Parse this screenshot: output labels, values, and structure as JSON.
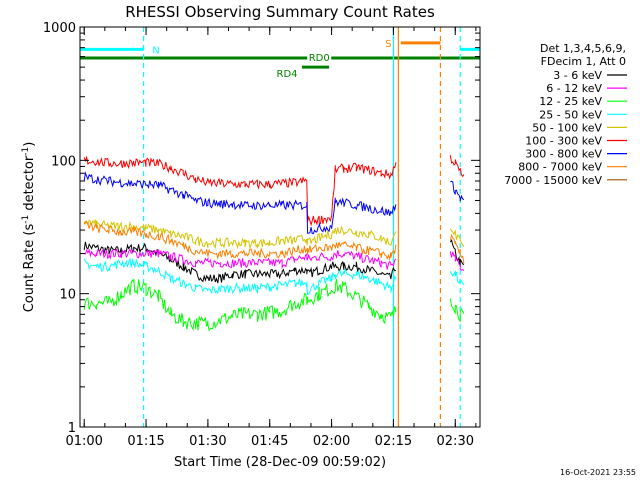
{
  "chart_data": {
    "type": "line",
    "title": "RHESSI Observing Summary Count Rates",
    "xlabel": "Start Time (28-Dec-09 00:59:02)",
    "ylabel_main": "Count Rate (s",
    "ylabel_sup1": "-1",
    "ylabel_mid": " detector",
    "ylabel_sup2": "-1",
    "ylabel_end": ")",
    "yscale": "log",
    "ylim": [
      1,
      1000
    ],
    "xlim": [
      0.983,
      2.6
    ],
    "x_ticks": [
      {
        "v": 1.0,
        "label": "01:00"
      },
      {
        "v": 1.25,
        "label": "01:15"
      },
      {
        "v": 1.5,
        "label": "01:30"
      },
      {
        "v": 1.75,
        "label": "01:45"
      },
      {
        "v": 2.0,
        "label": "02:00"
      },
      {
        "v": 2.25,
        "label": "02:15"
      },
      {
        "v": 2.5,
        "label": "02:30"
      }
    ],
    "y_ticks": [
      {
        "v": 1,
        "label": "1"
      },
      {
        "v": 10,
        "label": "10"
      },
      {
        "v": 100,
        "label": "100"
      },
      {
        "v": 1000,
        "label": "1000"
      }
    ],
    "legend": {
      "header1": "Det 1,3,4,5,6,9,",
      "header2": "FDecim 1, Att 0",
      "entries": [
        {
          "label": "3 - 6 keV",
          "color": "#000000"
        },
        {
          "label": "6 - 12 keV",
          "color": "#ff00ff"
        },
        {
          "label": "12 - 25 keV",
          "color": "#00ff00"
        },
        {
          "label": "25 - 50 keV",
          "color": "#00ffff"
        },
        {
          "label": "50 - 100 keV",
          "color": "#d4c400"
        },
        {
          "label": "100 - 300 keV",
          "color": "#ff0000"
        },
        {
          "label": "300 - 800 keV",
          "color": "#0000ff"
        },
        {
          "label": "800 - 7000 keV",
          "color": "#ff8000"
        },
        {
          "label": "7000 - 15000 keV",
          "color": "#a05000"
        }
      ]
    },
    "flag_bars": [
      {
        "label": "N",
        "color": "#00ffff",
        "x0": 0.983,
        "x1": 1.24,
        "level": 680,
        "label_x": 1.29
      },
      {
        "label": "N",
        "color": "#00ffff",
        "x0": 2.52,
        "x1": 2.6,
        "level": 680,
        "label_x": null
      },
      {
        "label": "S",
        "color": "#ff8000",
        "x0": 2.28,
        "x1": 2.44,
        "level": 760,
        "label_x": 2.23
      },
      {
        "label": "RD0",
        "color": "#008000",
        "x0": 0.983,
        "x1": 2.6,
        "level": 585,
        "label_x": 1.95
      },
      {
        "label": "RD4",
        "color": "#008000",
        "x0": 1.88,
        "x1": 1.99,
        "level": 500,
        "label_x": 1.82
      }
    ],
    "vertical_lines": [
      {
        "x": 1.24,
        "color": "#00ffff",
        "dashed": true
      },
      {
        "x": 2.25,
        "color": "#00ffff",
        "dashed": false
      },
      {
        "x": 2.27,
        "color": "#ff8000",
        "dashed": false
      },
      {
        "x": 2.44,
        "color": "#ff8000",
        "dashed": true
      },
      {
        "x": 2.52,
        "color": "#00ffff",
        "dashed": true
      }
    ],
    "x": [
      1.0,
      1.05,
      1.1,
      1.15,
      1.2,
      1.25,
      1.3,
      1.35,
      1.4,
      1.45,
      1.5,
      1.55,
      1.6,
      1.65,
      1.7,
      1.75,
      1.8,
      1.85,
      1.9,
      1.903,
      1.95,
      2.0,
      2.015,
      2.05,
      2.1,
      2.15,
      2.2,
      2.24,
      2.26,
      2.465,
      2.48,
      2.5,
      2.52,
      2.535
    ],
    "series": [
      {
        "color": "#000000",
        "values": [
          23,
          22,
          21,
          21,
          22,
          22,
          20,
          18,
          16,
          14,
          13,
          13,
          14,
          14,
          14,
          14,
          14,
          15,
          15,
          14,
          15,
          16,
          16,
          16,
          16,
          15,
          14,
          13,
          16,
          null,
          25,
          20,
          17,
          16
        ]
      },
      {
        "color": "#ff00ff",
        "values": [
          20,
          20,
          20,
          20,
          20,
          20,
          20,
          19,
          18,
          17,
          17,
          17,
          17,
          17,
          17,
          17,
          17,
          18,
          19,
          18,
          19,
          19,
          20,
          20,
          19,
          18,
          17,
          16,
          18,
          null,
          21,
          18,
          16,
          15
        ]
      },
      {
        "color": "#00ff00",
        "values": [
          8.5,
          8.5,
          8.5,
          10,
          11.5,
          11,
          9.5,
          7,
          6.2,
          6,
          6,
          6.3,
          6.8,
          7,
          7,
          7.2,
          7.5,
          8.5,
          9,
          9,
          10,
          11,
          11.5,
          11,
          9.5,
          8,
          7,
          6.5,
          7.5,
          null,
          9.5,
          8,
          7,
          6.5
        ]
      },
      {
        "color": "#00ffff",
        "values": [
          17,
          16,
          16,
          17,
          17,
          16,
          15,
          13,
          12,
          11,
          10.5,
          10.8,
          11,
          11,
          11,
          11.3,
          11.5,
          12,
          12,
          10.5,
          12,
          13,
          14,
          14,
          14,
          13,
          12,
          11,
          13,
          null,
          15,
          14,
          12,
          11
        ]
      },
      {
        "color": "#d4c400",
        "values": [
          35,
          33,
          32,
          32,
          32,
          31,
          30,
          28,
          27,
          25,
          24,
          24,
          24,
          24,
          24,
          24,
          25,
          25,
          26,
          24,
          26,
          28,
          30,
          30,
          29,
          28,
          26,
          24,
          28,
          null,
          33,
          28,
          24,
          22
        ]
      },
      {
        "color": "#ff0000",
        "values": [
          100,
          98,
          95,
          95,
          96,
          96,
          94,
          88,
          80,
          72,
          68,
          67,
          66,
          66,
          66,
          66,
          67,
          68,
          70,
          35,
          36,
          37,
          85,
          87,
          88,
          85,
          80,
          78,
          95,
          null,
          105,
          95,
          82,
          75
        ]
      },
      {
        "color": "#0000ff",
        "values": [
          75,
          72,
          70,
          68,
          67,
          66,
          65,
          60,
          55,
          50,
          48,
          47,
          47,
          46,
          46,
          46,
          46,
          46,
          46,
          30,
          31,
          32,
          49,
          48,
          46,
          44,
          42,
          40,
          48,
          null,
          68,
          60,
          52,
          50
        ]
      },
      {
        "color": "#ff8000",
        "values": [
          33,
          31,
          30,
          29,
          29,
          28,
          27,
          25,
          23,
          21,
          20,
          20,
          20,
          20,
          20,
          20,
          20,
          21,
          22,
          21,
          22,
          22,
          23,
          23,
          22,
          21,
          20,
          19,
          22,
          null,
          27,
          23,
          20,
          18
        ]
      }
    ]
  },
  "footer": {
    "timestamp": "16-Oct-2021 23:55"
  }
}
